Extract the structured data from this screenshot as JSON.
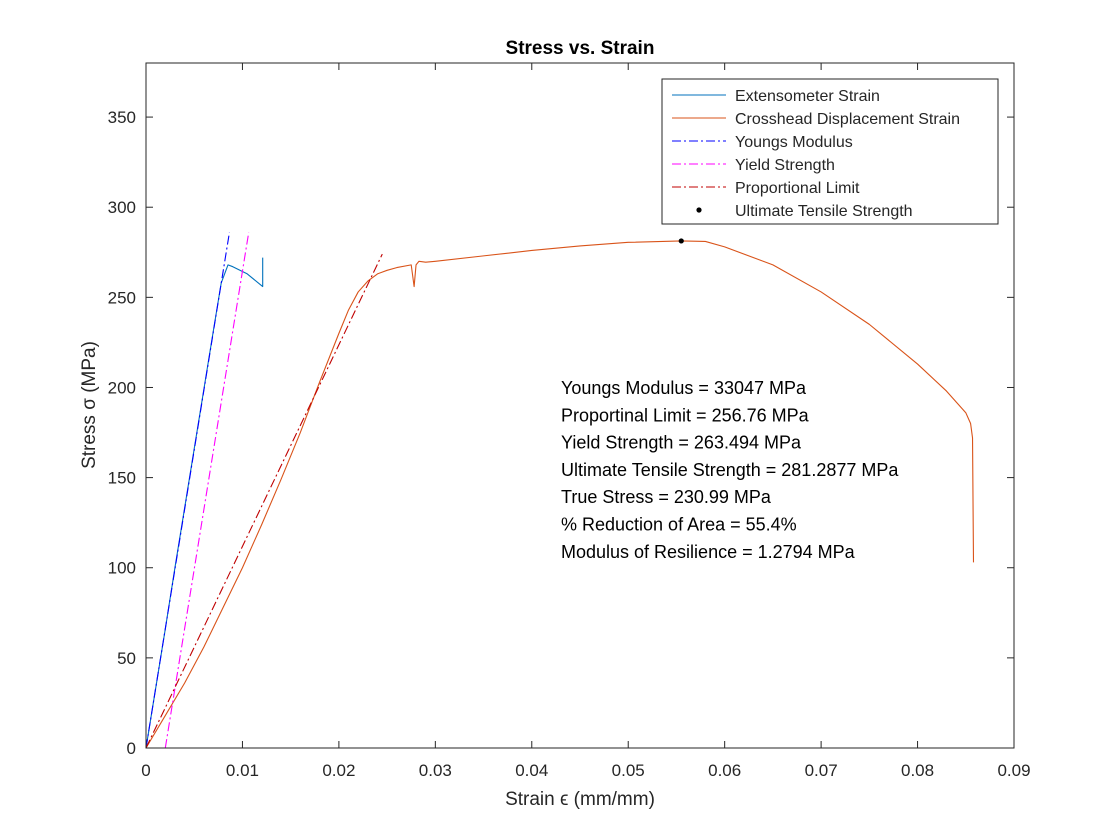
{
  "chart_data": {
    "type": "line",
    "title": "Stress vs. Strain",
    "xlabel": "Strain ϵ (mm/mm)",
    "ylabel": "Stress σ (MPa)",
    "xlim": [
      0,
      0.09
    ],
    "ylim": [
      0,
      380
    ],
    "x_ticks": [
      0,
      0.01,
      0.02,
      0.03,
      0.04,
      0.05,
      0.06,
      0.07,
      0.08,
      0.09
    ],
    "x_tick_labels": [
      "0",
      "0.01",
      "0.02",
      "0.03",
      "0.04",
      "0.05",
      "0.06",
      "0.07",
      "0.08",
      "0.09"
    ],
    "y_ticks": [
      0,
      50,
      100,
      150,
      200,
      250,
      300,
      350
    ],
    "y_tick_labels": [
      "0",
      "50",
      "100",
      "150",
      "200",
      "250",
      "300",
      "350"
    ],
    "grid": false,
    "legend_position": "top-right",
    "series": [
      {
        "name": "Extensometer Strain",
        "color": "#0072BD",
        "style": "solid",
        "x": [
          0,
          0.001,
          0.002,
          0.003,
          0.004,
          0.005,
          0.006,
          0.007,
          0.0078,
          0.0085,
          0.009,
          0.0105,
          0.0121,
          0.0121
        ],
        "y": [
          0,
          33,
          66,
          100,
          133,
          166,
          199,
          232,
          258,
          268,
          267,
          263,
          256,
          272
        ]
      },
      {
        "name": "Crosshead Displacement Strain",
        "color": "#D95319",
        "style": "solid",
        "x": [
          0,
          0.002,
          0.004,
          0.006,
          0.008,
          0.01,
          0.012,
          0.014,
          0.016,
          0.018,
          0.02,
          0.021,
          0.022,
          0.023,
          0.024,
          0.025,
          0.026,
          0.0275,
          0.0278,
          0.028,
          0.0283,
          0.029,
          0.03,
          0.035,
          0.04,
          0.045,
          0.05,
          0.0555,
          0.058,
          0.06,
          0.065,
          0.07,
          0.075,
          0.08,
          0.083,
          0.085,
          0.0855,
          0.0857,
          0.0858
        ],
        "y": [
          0,
          18,
          36,
          56,
          78,
          100,
          124,
          149,
          175,
          203,
          230,
          243,
          253,
          259,
          263,
          265,
          266.5,
          268,
          256,
          268,
          270,
          269.5,
          270,
          273,
          276,
          278.5,
          280.5,
          281.3,
          281,
          278,
          268,
          253,
          235,
          213,
          198,
          186,
          180,
          172,
          103
        ]
      },
      {
        "name": "Youngs Modulus",
        "color": "#0000FF",
        "style": "dashdot",
        "x": [
          0,
          0.00865
        ],
        "y": [
          0,
          286
        ]
      },
      {
        "name": "Yield Strength",
        "color": "#FF00FF",
        "style": "dashdot",
        "x": [
          0.002,
          0.01065
        ],
        "y": [
          0,
          286
        ]
      },
      {
        "name": "Proportional Limit",
        "color": "#C00000",
        "style": "dashdot",
        "x": [
          0,
          0.0245
        ],
        "y": [
          0,
          274
        ]
      },
      {
        "name": "Ultimate Tensile Strength",
        "color": "#000000",
        "style": "point",
        "x": [
          0.0555
        ],
        "y": [
          281.2877
        ]
      }
    ],
    "annotations": [
      "Youngs Modulus = 33047 MPa",
      "Proportinal Limit = 256.76 MPa",
      "Yield Strength = 263.494 MPa",
      "Ultimate Tensile Strength = 281.2877 MPa",
      "True Stress = 230.99 MPa",
      "% Reduction of Area = 55.4%",
      "Modulus of Resilience = 1.2794 MPa"
    ]
  }
}
